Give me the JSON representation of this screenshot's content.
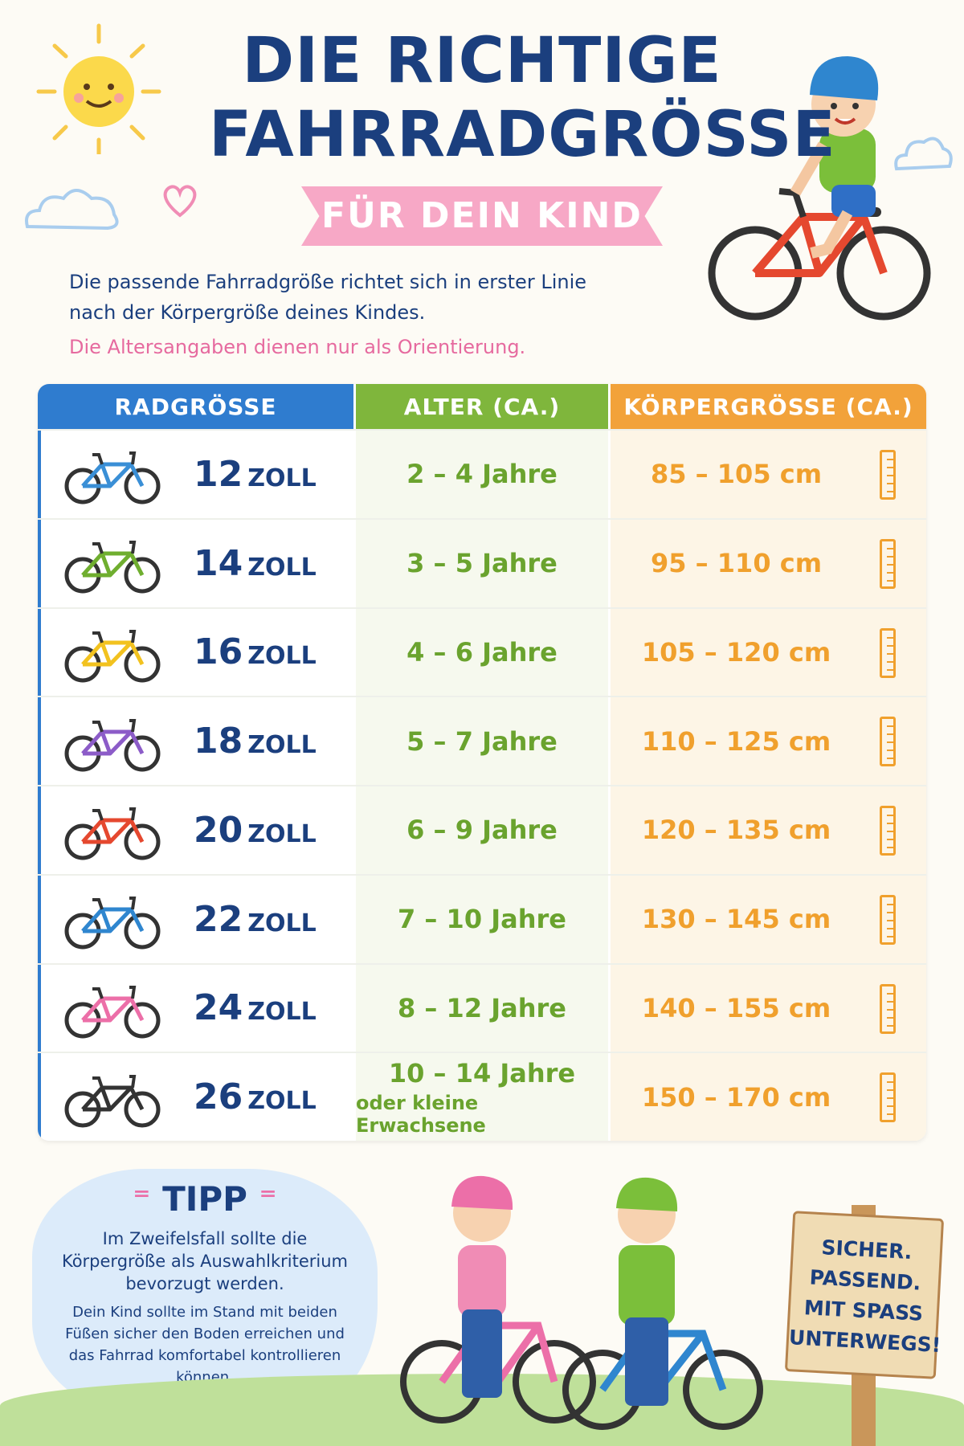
{
  "header": {
    "title_line1": "DIE RICHTIGE",
    "title_line2": "FAHRRADGRÖSSE",
    "banner": "FÜR DEIN KIND"
  },
  "intro": {
    "text_line1": "Die passende Fahrradgröße richtet sich in erster Linie",
    "text_line2": "nach der Körpergröße deines Kindes.",
    "note": "Die Altersangaben dienen nur als Orientierung."
  },
  "table": {
    "headers": [
      "RADGRÖSSE",
      "ALTER (CA.)",
      "KÖRPERGRÖSSE (CA.)"
    ],
    "rows": [
      {
        "size": "12",
        "unit": "ZOLL",
        "age": "2 – 4 Jahre",
        "age_extra": "",
        "height": "85 – 105 cm",
        "bike_color": "#3a8fd6"
      },
      {
        "size": "14",
        "unit": "ZOLL",
        "age": "3 – 5 Jahre",
        "age_extra": "",
        "height": "95 – 110 cm",
        "bike_color": "#6fae2f"
      },
      {
        "size": "16",
        "unit": "ZOLL",
        "age": "4 – 6 Jahre",
        "age_extra": "",
        "height": "105 – 120 cm",
        "bike_color": "#f2c21f"
      },
      {
        "size": "18",
        "unit": "ZOLL",
        "age": "5 – 7 Jahre",
        "age_extra": "",
        "height": "110 – 125 cm",
        "bike_color": "#8c5cc8"
      },
      {
        "size": "20",
        "unit": "ZOLL",
        "age": "6 – 9 Jahre",
        "age_extra": "",
        "height": "120 – 135 cm",
        "bike_color": "#e5482f"
      },
      {
        "size": "22",
        "unit": "ZOLL",
        "age": "7 – 10 Jahre",
        "age_extra": "",
        "height": "130 – 145 cm",
        "bike_color": "#2f86cf"
      },
      {
        "size": "24",
        "unit": "ZOLL",
        "age": "8 – 12 Jahre",
        "age_extra": "",
        "height": "140 – 155 cm",
        "bike_color": "#ec6fa8"
      },
      {
        "size": "26",
        "unit": "ZOLL",
        "age": "10 – 14 Jahre",
        "age_extra": "oder kleine Erwachsene",
        "height": "150 – 170 cm",
        "bike_color": "#333333"
      }
    ]
  },
  "tip": {
    "title": "TIPP",
    "main": "Im Zweifelsfall sollte die Körpergröße als Auswahlkriterium bevorzugt werden.",
    "sub": "Dein Kind sollte im Stand mit beiden Füßen sicher den Boden erreichen und das Fahrrad komfortabel kontrollieren können."
  },
  "sign": {
    "line1": "SICHER.",
    "line2": "PASSEND.",
    "line3": "MIT SPASS",
    "line4": "UNTERWEGS!"
  },
  "colors": {
    "navy": "#1b3f7e",
    "blue_header": "#2f7ccf",
    "green_header": "#7fb63c",
    "orange_header": "#f2a23a",
    "pink": "#f7a8c6"
  },
  "icons": [
    "sun-icon",
    "heart-icon",
    "cloud-icon",
    "bike-icon",
    "ruler-icon",
    "child-cyclist-illustration",
    "children-with-bikes-illustration",
    "wooden-sign"
  ]
}
